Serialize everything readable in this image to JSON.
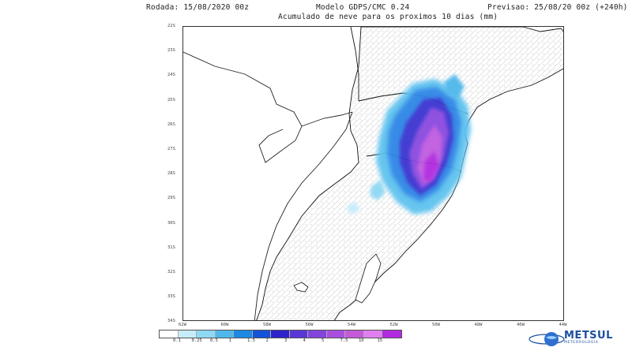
{
  "header": {
    "run": "Rodada: 15/08/2020 00z",
    "model": "Modelo GDPS/CMC 0.24",
    "subtitle": "Acumulado de neve para os proximos 10 dias (mm)",
    "forecast": "Previsao: 25/08/20 00z (+240h)"
  },
  "lat_ticks": [
    "22S",
    "23S",
    "24S",
    "25S",
    "26S",
    "27S",
    "28S",
    "29S",
    "30S",
    "31S",
    "32S",
    "33S",
    "34S"
  ],
  "lon_ticks": [
    "62W",
    "60W",
    "58W",
    "56W",
    "54W",
    "52W",
    "50W",
    "48W",
    "46W",
    "44W"
  ],
  "scale": {
    "labels": [
      "0.1",
      "0.25",
      "0.5",
      "1",
      "1.5",
      "2",
      "3",
      "4",
      "5",
      "7.5",
      "10",
      "15"
    ],
    "colors": [
      "#ffffff",
      "#c6ecfa",
      "#8fd8f4",
      "#4fb7ea",
      "#1e88e3",
      "#1453d9",
      "#2d24c9",
      "#5a36d6",
      "#8244dc",
      "#a94fe0",
      "#c45ad8",
      "#e27ef0",
      "#b12ce0"
    ]
  },
  "logo": {
    "name": "METSUL",
    "sub": "METEOROLOGIA",
    "icon": "globe-icon"
  },
  "map": {
    "region": "Sul do Brasil",
    "field": "snow-accumulation",
    "colors": {
      "coast": "#111111",
      "border": "#222222",
      "municipal": "#9a9a9a"
    }
  }
}
